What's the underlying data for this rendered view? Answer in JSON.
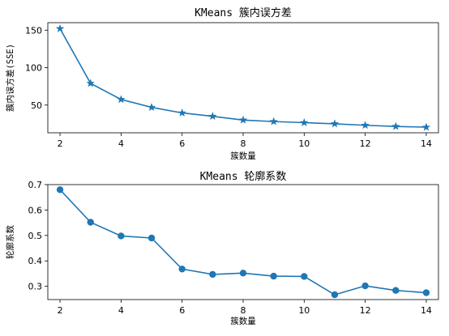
{
  "chart_data": [
    {
      "type": "line",
      "title": "KMeans 簇内误方差",
      "xlabel": "簇数量",
      "ylabel": "簇内误方差(SSE)",
      "marker": "star",
      "color": "#1f77b4",
      "x": [
        2,
        3,
        4,
        5,
        6,
        7,
        8,
        9,
        10,
        11,
        12,
        13,
        14
      ],
      "values": [
        152,
        79,
        57.5,
        47,
        39.5,
        35,
        30,
        28,
        26.5,
        25,
        23,
        21.5,
        20.5
      ],
      "xlim": [
        1.6,
        14.4
      ],
      "ylim": [
        13,
        160
      ],
      "xticks": [
        2,
        4,
        6,
        8,
        10,
        12,
        14
      ],
      "yticks": [
        50,
        100,
        150
      ],
      "ytick_labels": [
        "50",
        "100",
        "150"
      ],
      "grid": false
    },
    {
      "type": "line",
      "title": "KMeans 轮廓系数",
      "xlabel": "簇数量",
      "ylabel": "轮廓系数",
      "marker": "circle",
      "color": "#1f77b4",
      "x": [
        2,
        3,
        4,
        5,
        6,
        7,
        8,
        9,
        10,
        11,
        12,
        13,
        14
      ],
      "values": [
        0.68,
        0.552,
        0.498,
        0.49,
        0.368,
        0.347,
        0.352,
        0.34,
        0.339,
        0.267,
        0.302,
        0.284,
        0.275
      ],
      "xlim": [
        1.6,
        14.4
      ],
      "ylim": [
        0.248,
        0.7
      ],
      "xticks": [
        2,
        4,
        6,
        8,
        10,
        12,
        14
      ],
      "yticks": [
        0.3,
        0.4,
        0.5,
        0.6,
        0.7
      ],
      "ytick_labels": [
        "0.3",
        "0.4",
        "0.5",
        "0.6",
        "0.7"
      ],
      "grid": false
    }
  ]
}
